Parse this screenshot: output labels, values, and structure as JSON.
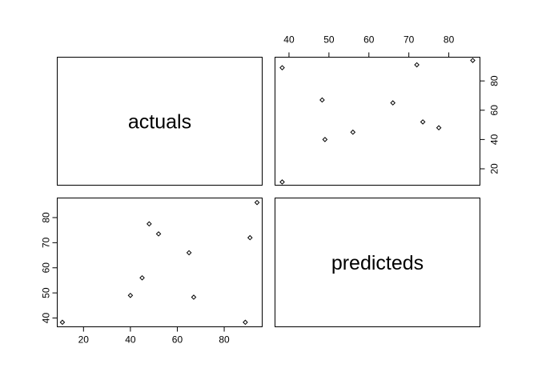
{
  "chart_data": {
    "type": "scatter",
    "kind": "pairs-matrix",
    "variables": [
      "actuals",
      "predicteds"
    ],
    "actuals": [
      11,
      40,
      45,
      48,
      52,
      65,
      67,
      89,
      91,
      94
    ],
    "predicteds": [
      38.3,
      49,
      56,
      77.5,
      73.5,
      66,
      48.3,
      38.3,
      72,
      86
    ],
    "axes": {
      "actuals": {
        "lim": [
          8.8,
          96.2
        ],
        "ticks": [
          20,
          40,
          60,
          80
        ]
      },
      "predicteds": {
        "lim": [
          36.5,
          87.8
        ],
        "ticks": [
          40,
          50,
          60,
          70,
          80
        ]
      }
    },
    "grid": false,
    "legend": "none"
  }
}
